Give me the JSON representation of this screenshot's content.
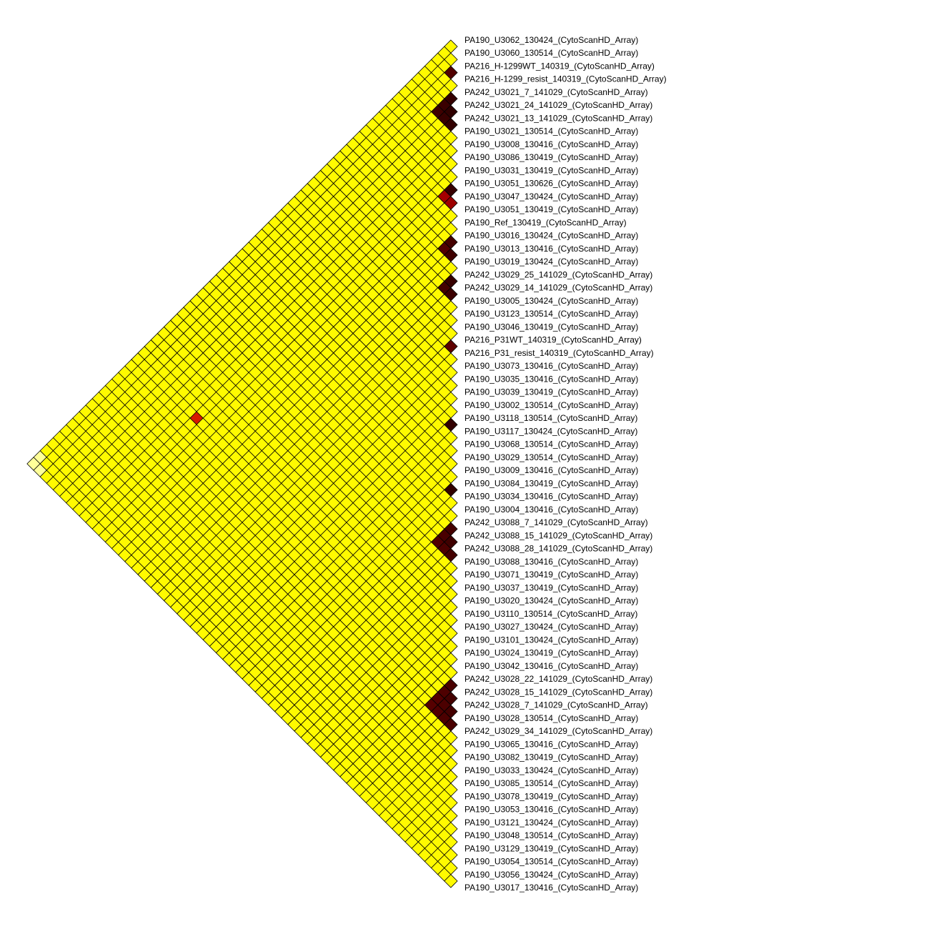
{
  "chart_data": {
    "type": "heatmap",
    "layout": "triangular-rotated-45",
    "labels": [
      "PA190_U3062_130424_(CytoScanHD_Array)",
      "PA190_U3060_130514_(CytoScanHD_Array)",
      "PA216_H-1299WT_140319_(CytoScanHD_Array)",
      "PA216_H-1299_resist_140319_(CytoScanHD_Array)",
      "PA242_U3021_7_141029_(CytoScanHD_Array)",
      "PA242_U3021_24_141029_(CytoScanHD_Array)",
      "PA242_U3021_13_141029_(CytoScanHD_Array)",
      "PA190_U3021_130514_(CytoScanHD_Array)",
      "PA190_U3008_130416_(CytoScanHD_Array)",
      "PA190_U3086_130419_(CytoScanHD_Array)",
      "PA190_U3031_130419_(CytoScanHD_Array)",
      "PA190_U3051_130626_(CytoScanHD_Array)",
      "PA190_U3047_130424_(CytoScanHD_Array)",
      "PA190_U3051_130419_(CytoScanHD_Array)",
      "PA190_Ref_130419_(CytoScanHD_Array)",
      "PA190_U3016_130424_(CytoScanHD_Array)",
      "PA190_U3013_130416_(CytoScanHD_Array)",
      "PA190_U3019_130424_(CytoScanHD_Array)",
      "PA242_U3029_25_141029_(CytoScanHD_Array)",
      "PA242_U3029_14_141029_(CytoScanHD_Array)",
      "PA190_U3005_130424_(CytoScanHD_Array)",
      "PA190_U3123_130514_(CytoScanHD_Array)",
      "PA190_U3046_130419_(CytoScanHD_Array)",
      "PA216_P31WT_140319_(CytoScanHD_Array)",
      "PA216_P31_resist_140319_(CytoScanHD_Array)",
      "PA190_U3073_130416_(CytoScanHD_Array)",
      "PA190_U3035_130416_(CytoScanHD_Array)",
      "PA190_U3039_130419_(CytoScanHD_Array)",
      "PA190_U3002_130514_(CytoScanHD_Array)",
      "PA190_U3118_130514_(CytoScanHD_Array)",
      "PA190_U3117_130424_(CytoScanHD_Array)",
      "PA190_U3068_130514_(CytoScanHD_Array)",
      "PA190_U3029_130514_(CytoScanHD_Array)",
      "PA190_U3009_130416_(CytoScanHD_Array)",
      "PA190_U3084_130419_(CytoScanHD_Array)",
      "PA190_U3034_130416_(CytoScanHD_Array)",
      "PA190_U3004_130416_(CytoScanHD_Array)",
      "PA242_U3088_7_141029_(CytoScanHD_Array)",
      "PA242_U3088_15_141029_(CytoScanHD_Array)",
      "PA242_U3088_28_141029_(CytoScanHD_Array)",
      "PA190_U3088_130416_(CytoScanHD_Array)",
      "PA190_U3071_130419_(CytoScanHD_Array)",
      "PA190_U3037_130419_(CytoScanHD_Array)",
      "PA190_U3020_130424_(CytoScanHD_Array)",
      "PA190_U3110_130514_(CytoScanHD_Array)",
      "PA190_U3027_130424_(CytoScanHD_Array)",
      "PA190_U3101_130424_(CytoScanHD_Array)",
      "PA190_U3024_130419_(CytoScanHD_Array)",
      "PA190_U3042_130416_(CytoScanHD_Array)",
      "PA242_U3028_22_141029_(CytoScanHD_Array)",
      "PA242_U3028_15_141029_(CytoScanHD_Array)",
      "PA242_U3028_7_141029_(CytoScanHD_Array)",
      "PA190_U3028_130514_(CytoScanHD_Array)",
      "PA242_U3029_34_141029_(CytoScanHD_Array)",
      "PA190_U3065_130416_(CytoScanHD_Array)",
      "PA190_U3082_130419_(CytoScanHD_Array)",
      "PA190_U3033_130424_(CytoScanHD_Array)",
      "PA190_U3085_130514_(CytoScanHD_Array)",
      "PA190_U3078_130419_(CytoScanHD_Array)",
      "PA190_U3053_130416_(CytoScanHD_Array)",
      "PA190_U3121_130424_(CytoScanHD_Array)",
      "PA190_U3048_130514_(CytoScanHD_Array)",
      "PA190_U3129_130419_(CytoScanHD_Array)",
      "PA190_U3054_130514_(CytoScanHD_Array)",
      "PA190_U3056_130424_(CytoScanHD_Array)",
      "PA190_U3017_130416_(CytoScanHD_Array)"
    ],
    "value_range": [
      0,
      1
    ],
    "default_value": 0.01,
    "colors": {
      "scale": [
        "#ffff00",
        "#ff8c00",
        "#cc0000",
        "#6b0000",
        "#2a0000"
      ],
      "light": "#ffff99",
      "background": "#ffffff",
      "grid": "#000000"
    },
    "light_pairs": [
      [
        0,
        65
      ],
      [
        1,
        65
      ],
      [
        0,
        64
      ]
    ],
    "high_pairs": [
      {
        "i": 2,
        "j": 3,
        "v": 0.85
      },
      {
        "i": 4,
        "j": 5,
        "v": 0.96
      },
      {
        "i": 4,
        "j": 6,
        "v": 0.94
      },
      {
        "i": 4,
        "j": 7,
        "v": 0.92
      },
      {
        "i": 5,
        "j": 6,
        "v": 0.98
      },
      {
        "i": 5,
        "j": 7,
        "v": 0.95
      },
      {
        "i": 6,
        "j": 7,
        "v": 0.97
      },
      {
        "i": 11,
        "j": 12,
        "v": 0.95
      },
      {
        "i": 11,
        "j": 13,
        "v": 0.6
      },
      {
        "i": 12,
        "j": 13,
        "v": 0.62
      },
      {
        "i": 15,
        "j": 16,
        "v": 0.9
      },
      {
        "i": 15,
        "j": 17,
        "v": 0.85
      },
      {
        "i": 16,
        "j": 17,
        "v": 0.92
      },
      {
        "i": 18,
        "j": 19,
        "v": 0.95
      },
      {
        "i": 18,
        "j": 20,
        "v": 0.9
      },
      {
        "i": 19,
        "j": 20,
        "v": 0.93
      },
      {
        "i": 23,
        "j": 24,
        "v": 0.8
      },
      {
        "i": 29,
        "j": 30,
        "v": 0.97
      },
      {
        "i": 34,
        "j": 35,
        "v": 0.97
      },
      {
        "i": 37,
        "j": 38,
        "v": 0.9
      },
      {
        "i": 37,
        "j": 39,
        "v": 0.88
      },
      {
        "i": 37,
        "j": 40,
        "v": 0.85
      },
      {
        "i": 38,
        "j": 39,
        "v": 0.92
      },
      {
        "i": 38,
        "j": 40,
        "v": 0.87
      },
      {
        "i": 39,
        "j": 40,
        "v": 0.9
      },
      {
        "i": 49,
        "j": 50,
        "v": 0.88
      },
      {
        "i": 49,
        "j": 51,
        "v": 0.86
      },
      {
        "i": 49,
        "j": 52,
        "v": 0.84
      },
      {
        "i": 49,
        "j": 53,
        "v": 0.83
      },
      {
        "i": 50,
        "j": 51,
        "v": 0.9
      },
      {
        "i": 50,
        "j": 52,
        "v": 0.87
      },
      {
        "i": 50,
        "j": 53,
        "v": 0.85
      },
      {
        "i": 51,
        "j": 52,
        "v": 0.9
      },
      {
        "i": 51,
        "j": 53,
        "v": 0.87
      },
      {
        "i": 52,
        "j": 53,
        "v": 0.88
      },
      {
        "i": 9,
        "j": 49,
        "v": 0.45
      }
    ]
  }
}
